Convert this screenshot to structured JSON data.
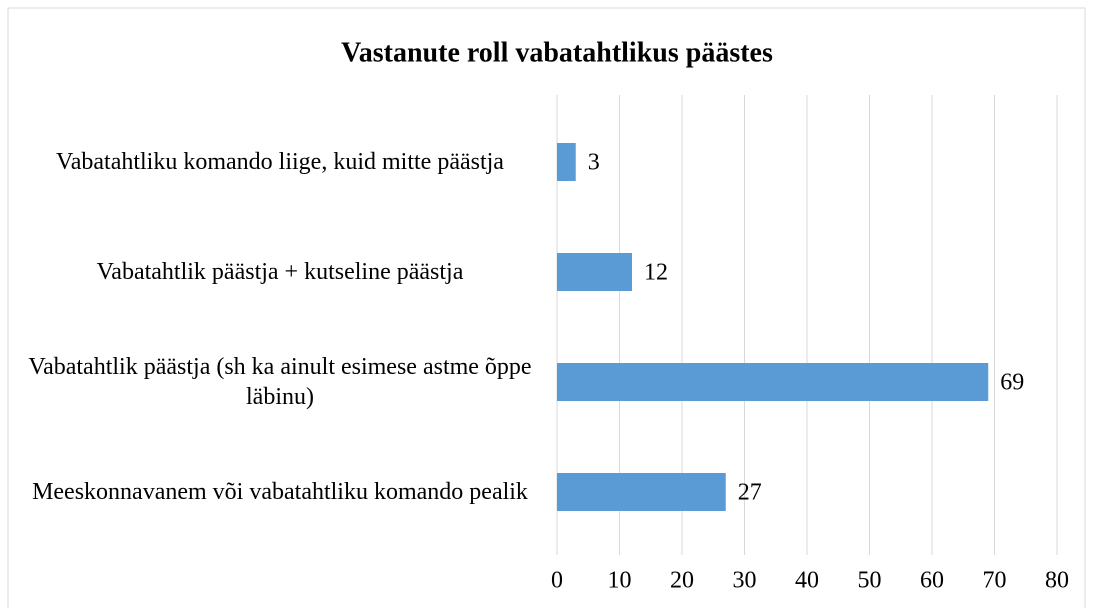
{
  "chart_data": {
    "type": "bar",
    "orientation": "horizontal",
    "title": "Vastanute roll vabatahtlikus päästes",
    "categories": [
      "Vabatahtliku komando liige, kuid mitte päästja",
      "Vabatahtlik päästja + kutseline päästja",
      "Vabatahtlik päästja (sh ka ainult esimese astme õppe läbinu)",
      "Meeskonnavanem või vabatahtliku komando pealik"
    ],
    "values": [
      3,
      12,
      69,
      27
    ],
    "color": "#5b9bd5",
    "xlim": [
      0,
      80
    ],
    "xticks": [
      0,
      10,
      20,
      30,
      40,
      50,
      60,
      70,
      80
    ],
    "grid": true
  }
}
